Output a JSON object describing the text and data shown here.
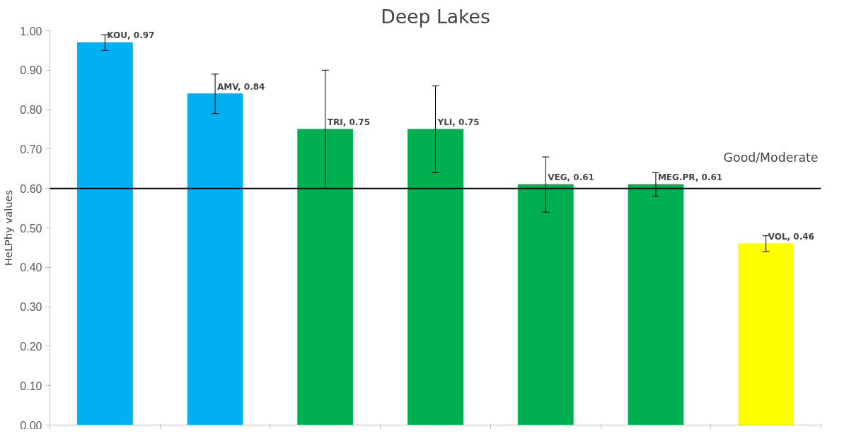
{
  "chart_data": {
    "type": "bar",
    "title": "Deep Lakes",
    "ylabel": "HeLPhy values",
    "categories": [
      null,
      null,
      null,
      null,
      null,
      null,
      null
    ],
    "values": [
      0.97,
      0.84,
      0.75,
      0.75,
      0.61,
      0.61,
      0.46
    ],
    "colors": [
      "#00b0f0",
      "#00b0f0",
      "#00b050",
      "#00b050",
      "#00b050",
      "#00b050",
      "#ffff00"
    ],
    "errors": [
      [
        0.95,
        0.99
      ],
      [
        0.79,
        0.89
      ],
      [
        0.6,
        0.9
      ],
      [
        0.64,
        0.86
      ],
      [
        0.54,
        0.68
      ],
      [
        0.58,
        0.64
      ],
      [
        0.44,
        0.48
      ]
    ],
    "value_labels": [
      "KOU, 0.97",
      "AMV, 0.84",
      "TRI, 0.75",
      "YLI, 0.75",
      "VEG, 0.61",
      "MEG.PR, 0.61",
      "VOL, 0.46"
    ],
    "ylim": [
      0,
      1
    ],
    "yticks": [
      {
        "value": 0,
        "label": "0.00"
      },
      {
        "value": 0.1,
        "label": "0.10"
      },
      {
        "value": 0.2,
        "label": "0.20"
      },
      {
        "value": 0.3,
        "label": "0.30"
      },
      {
        "value": 0.4,
        "label": "0.40"
      },
      {
        "value": 0.5,
        "label": "0.50"
      },
      {
        "value": 0.6,
        "label": "0.60"
      },
      {
        "value": 0.7,
        "label": "0.70"
      },
      {
        "value": 0.8,
        "label": "0.80"
      },
      {
        "value": 0.9,
        "label": "0.90"
      },
      {
        "value": 1,
        "label": "1.00"
      }
    ],
    "ref_lines": [
      {
        "axis": "y",
        "value": 0.6,
        "label": "Good/Moderate",
        "color": "#000000"
      }
    ],
    "grid": false
  }
}
